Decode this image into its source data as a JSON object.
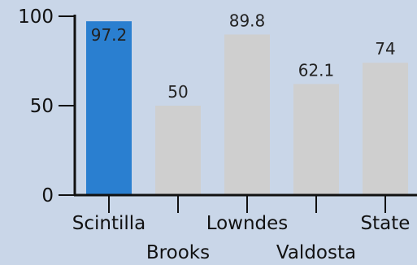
{
  "chart_data": {
    "type": "bar",
    "categories": [
      "Scintilla",
      "Brooks",
      "Lowndes",
      "Valdosta",
      "State"
    ],
    "values": [
      97.2,
      50,
      89.8,
      62.1,
      74
    ],
    "value_labels": [
      "97.2",
      "50",
      "89.8",
      "62.1",
      "74"
    ],
    "title": "",
    "xlabel": "",
    "ylabel": "",
    "ylim": [
      0,
      100
    ],
    "yticks": [
      0,
      50,
      100
    ],
    "ytick_labels": [
      "0",
      "50",
      "100"
    ],
    "grid": false,
    "highlight_index": 0,
    "colors": {
      "highlight": "#2a7fd0",
      "bar": "#cfcfcf",
      "axis": "#111111",
      "background": "#c9d6e8"
    }
  }
}
